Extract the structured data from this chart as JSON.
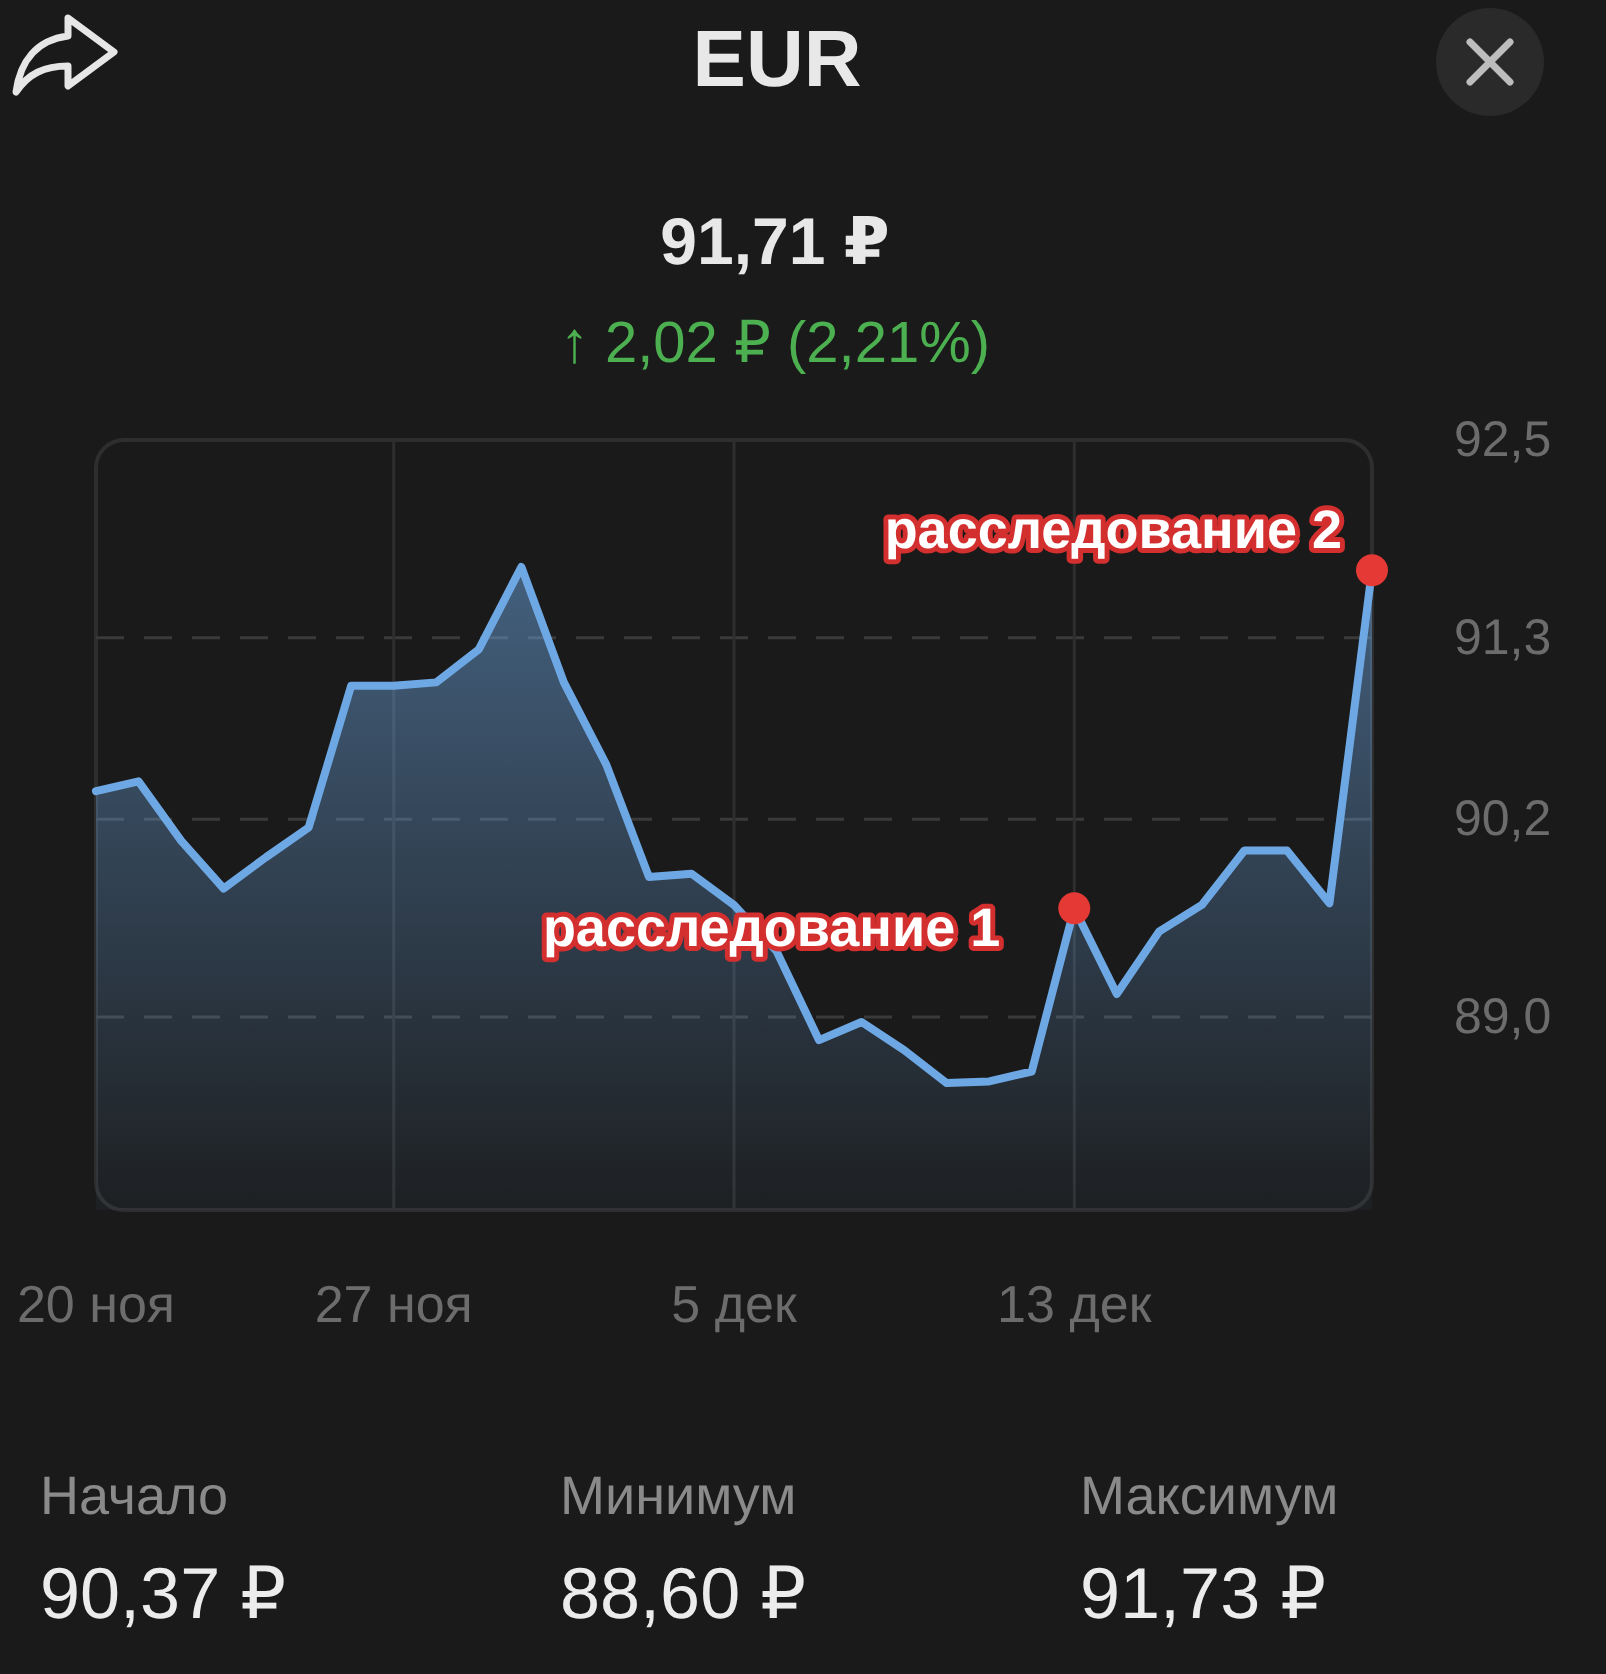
{
  "chart_data": {
    "type": "area",
    "title": "EUR",
    "subtitle": "91,71 ₽",
    "x": [
      "--11-20",
      "--11-21",
      "--11-22",
      "--11-23",
      "--11-24",
      "--11-25",
      "--11-26",
      "--11-27",
      "--11-28",
      "--11-29",
      "--11-30",
      "--12-01",
      "--12-02",
      "--12-03",
      "--12-04",
      "--12-05",
      "--12-06",
      "--12-07",
      "--12-08",
      "--12-09",
      "--12-10",
      "--12-11",
      "--12-12",
      "--12-13",
      "--12-14",
      "--12-15",
      "--12-16",
      "--12-17",
      "--12-18",
      "--12-19",
      "--12-20"
    ],
    "series": [
      {
        "color": "#6ea8e4",
        "values": [
          90.37,
          90.43,
          90.07,
          89.78,
          89.97,
          90.15,
          91.01,
          91.01,
          91.03,
          91.23,
          91.73,
          91.03,
          90.53,
          89.85,
          89.87,
          89.68,
          89.4,
          88.86,
          88.97,
          88.8,
          88.6,
          88.61,
          88.67,
          89.66,
          89.14,
          89.52,
          89.68,
          90.01,
          90.01,
          89.69,
          91.71
        ]
      }
    ],
    "xlim": [
      "--11-20",
      "--12-20"
    ],
    "xticks": [
      {
        "value": "--11-20",
        "label": "20 ноя"
      },
      {
        "value": "--11-27",
        "label": "27 ноя"
      },
      {
        "value": "--12-05",
        "label": "5 дек"
      },
      {
        "value": "--12-13",
        "label": "13 дек"
      }
    ],
    "ylim": [
      87.83,
      92.5
    ],
    "yticks": [
      {
        "value": 92.5,
        "label": "92,5"
      },
      {
        "value": 91.3,
        "label": "91,3"
      },
      {
        "value": 90.2,
        "label": "90,2"
      },
      {
        "value": 89.0,
        "label": "89,0"
      }
    ],
    "grid": true,
    "annotations": [
      {
        "text": "расследование 1",
        "x": "--12-13",
        "y": 89.66
      },
      {
        "text": "расследование 2",
        "x": "--12-20",
        "y": 91.71
      },
      "↑ 2,02 ₽ (2,21%)",
      "Начало",
      "90,37 ₽",
      "Минимум",
      "88,60 ₽",
      "Максимум",
      "91,73 ₽"
    ]
  }
}
